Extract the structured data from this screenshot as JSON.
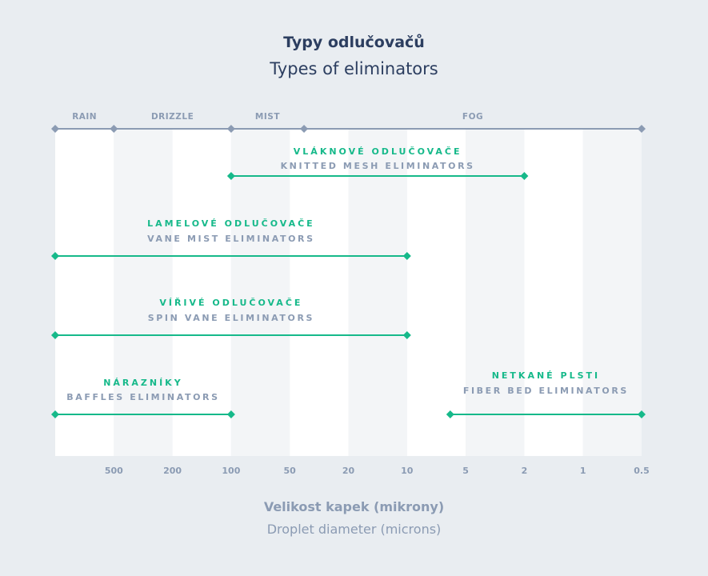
{
  "chart_data": {
    "type": "range",
    "title": "Typy odlučovačů",
    "subtitle": "Types of eliminators",
    "xlabel": "Velikost kapek (mikrony)",
    "xlabel_en": "Droplet diameter (microns)",
    "x_ticks": [
      "500",
      "200",
      "100",
      "50",
      "20",
      "10",
      "5",
      "2",
      "1",
      "0.5"
    ],
    "x_tick_values": [
      500,
      200,
      100,
      50,
      20,
      10,
      5,
      2,
      1,
      0.5
    ],
    "x_range": [
      1000,
      0.5
    ],
    "x_direction": "decreasing",
    "droplet_categories": [
      {
        "label": "RAIN",
        "from": 1000,
        "to": 500
      },
      {
        "label": "DRIZZLE",
        "from": 500,
        "to": 100
      },
      {
        "label": "MIST",
        "from": 100,
        "to": 40
      },
      {
        "label": "FOG",
        "from": 40,
        "to": 0.5
      }
    ],
    "series": [
      {
        "name_cz": "VLÁKNOVÉ ODLUČOVAČE",
        "name_en": "KNITTED MESH ELIMINATORS",
        "from": 100,
        "to": 2
      },
      {
        "name_cz": "LAMELOVÉ ODLUČOVAČE",
        "name_en": "VANE MIST ELIMINATORS",
        "from": 1000,
        "to": 10
      },
      {
        "name_cz": "VÍŘIVÉ ODLUČOVAČE",
        "name_en": "SPIN VANE ELIMINATORS",
        "from": 1000,
        "to": 10
      },
      {
        "name_cz": "NÁRAZNÍKY",
        "name_en": "BAFFLES ELIMINATORS",
        "from": 1000,
        "to": 100
      },
      {
        "name_cz": "NETKANÉ PLSTI",
        "name_en": "FIBER BED ELIMINATORS",
        "from": 6,
        "to": 0.5
      }
    ],
    "colors": {
      "range": "#16b98a",
      "category_axis": "#8b9bb3",
      "band_light": "#ffffff",
      "band_dark": "#f3f5f7",
      "background": "#e9edf1"
    },
    "grid": true
  }
}
